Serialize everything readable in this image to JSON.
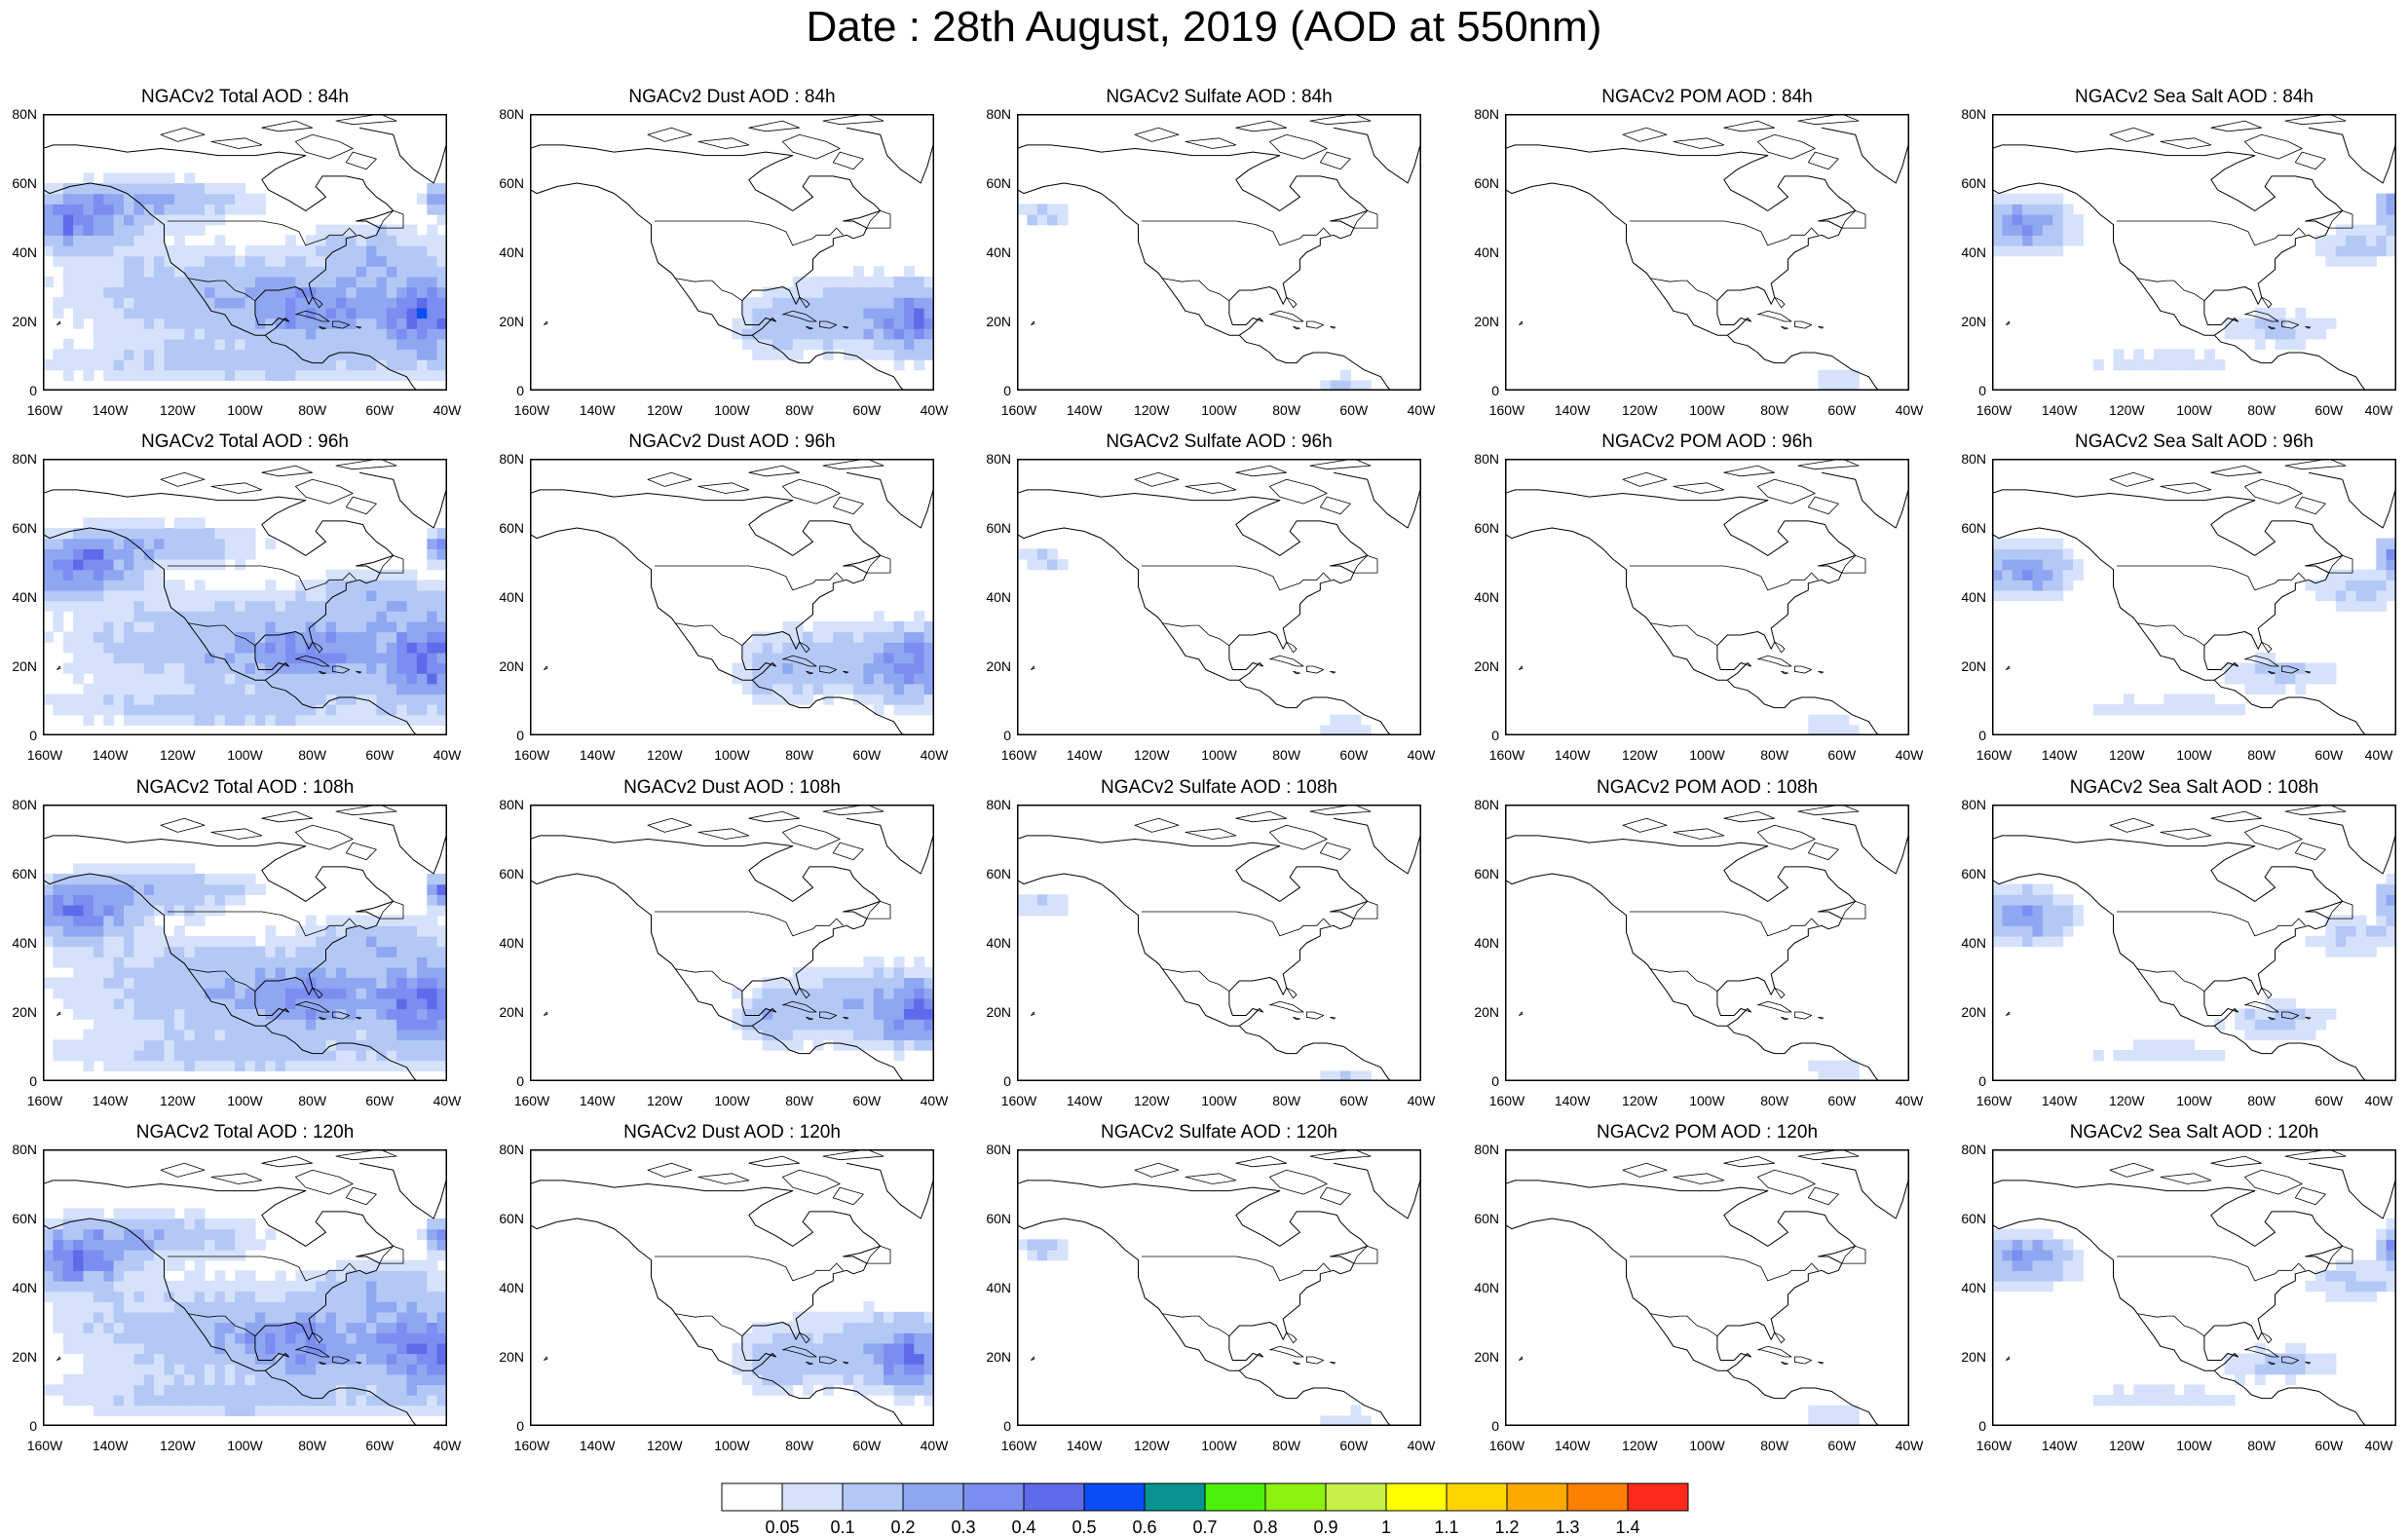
{
  "title": "Date : 28th August, 2019 (AOD at 550nm)",
  "lon_labels": [
    "160W",
    "140W",
    "120W",
    "100W",
    "80W",
    "60W",
    "40W"
  ],
  "lat_labels": [
    "80N",
    "60N",
    "40N",
    "20N",
    "0"
  ],
  "lon_values": [
    -160,
    -140,
    -120,
    -100,
    -80,
    -60,
    -40
  ],
  "lat_values": [
    80,
    60,
    40,
    20,
    0
  ],
  "map_extent": {
    "lon_min": -160,
    "lon_max": -40,
    "lat_min": 0,
    "lat_max": 80
  },
  "species": [
    {
      "key": "total",
      "label": "Total"
    },
    {
      "key": "dust",
      "label": "Dust"
    },
    {
      "key": "sulfate",
      "label": "Sulfate"
    },
    {
      "key": "pom",
      "label": "POM"
    },
    {
      "key": "seasalt",
      "label": "Sea Salt"
    }
  ],
  "panels": [
    [
      "NGACv2 Total AOD : 84h",
      "NGACv2 Dust AOD : 84h",
      "NGACv2 Sulfate AOD : 84h",
      "NGACv2 POM AOD : 84h",
      "NGACv2 Sea Salt AOD : 84h"
    ],
    [
      "NGACv2 Total AOD : 96h",
      "NGACv2 Dust AOD : 96h",
      "NGACv2 Sulfate AOD : 96h",
      "NGACv2 POM AOD : 96h",
      "NGACv2 Sea Salt AOD : 96h"
    ],
    [
      "NGACv2 Total AOD : 108h",
      "NGACv2 Dust AOD : 108h",
      "NGACv2 Sulfate AOD : 108h",
      "NGACv2 POM AOD : 108h",
      "NGACv2 Sea Salt AOD : 108h"
    ],
    [
      "NGACv2 Total AOD : 120h",
      "NGACv2 Dust AOD : 120h",
      "NGACv2 Sulfate AOD : 120h",
      "NGACv2 POM AOD : 120h",
      "NGACv2 Sea Salt  AOD : 120h"
    ]
  ],
  "colorbar": {
    "colors": [
      "#ffffff",
      "#d6e2fb",
      "#b4c8f6",
      "#8fa6f1",
      "#7b8df0",
      "#5f6aea",
      "#0b4df4",
      "#07938f",
      "#4cf00c",
      "#8ef00e",
      "#c8f048",
      "#ffff00",
      "#ffd500",
      "#ffaa00",
      "#ff7f00",
      "#ff2a1a"
    ],
    "labels": [
      "0.05",
      "0.1",
      "0.2",
      "0.3",
      "0.4",
      "0.5",
      "0.6",
      "0.7",
      "0.8",
      "0.9",
      "1",
      "1.1",
      "1.2",
      "1.3",
      "1.4"
    ]
  },
  "chart_data": {
    "type": "heatmap",
    "variable": "AOD at 550nm",
    "extent": {
      "lon": [
        -160,
        -40
      ],
      "lat": [
        0,
        80
      ]
    },
    "colorbar_levels": [
      0.05,
      0.1,
      0.2,
      0.3,
      0.4,
      0.5,
      0.6,
      0.7,
      0.8,
      0.9,
      1,
      1.1,
      1.2,
      1.3,
      1.4
    ],
    "forecast_hours": [
      "84h",
      "96h",
      "108h",
      "120h"
    ],
    "plumes": {
      "total": [
        {
          "lon": -150,
          "lat": 48,
          "rx": 14,
          "ry": 7,
          "v": 0.35
        },
        {
          "lon": -45,
          "lat": 22,
          "rx": 14,
          "ry": 11,
          "v": 0.4
        },
        {
          "lon": -80,
          "lat": 24,
          "rx": 22,
          "ry": 9,
          "v": 0.25
        },
        {
          "lon": -115,
          "lat": 28,
          "rx": 40,
          "ry": 14,
          "v": 0.15
        },
        {
          "lon": -100,
          "lat": 8,
          "rx": 60,
          "ry": 6,
          "v": 0.12
        },
        {
          "lon": -60,
          "lat": 40,
          "rx": 20,
          "ry": 8,
          "v": 0.15
        },
        {
          "lon": -130,
          "lat": 55,
          "rx": 30,
          "ry": 6,
          "v": 0.2
        },
        {
          "lon": -42,
          "lat": 55,
          "rx": 4,
          "ry": 4,
          "v": 0.35
        }
      ],
      "dust": [
        {
          "lon": -45,
          "lat": 20,
          "rx": 12,
          "ry": 9,
          "v": 0.3
        },
        {
          "lon": -65,
          "lat": 22,
          "rx": 26,
          "ry": 11,
          "v": 0.15
        },
        {
          "lon": -88,
          "lat": 18,
          "rx": 10,
          "ry": 8,
          "v": 0.12
        }
      ],
      "sulfate": [
        {
          "lon": -152,
          "lat": 51,
          "rx": 8,
          "ry": 4,
          "v": 0.12
        },
        {
          "lon": -62,
          "lat": 2,
          "rx": 10,
          "ry": 3,
          "v": 0.1
        }
      ],
      "pom": [
        {
          "lon": -62,
          "lat": 3,
          "rx": 10,
          "ry": 3,
          "v": 0.1
        }
      ],
      "seasalt": [
        {
          "lon": -150,
          "lat": 48,
          "rx": 13,
          "ry": 7,
          "v": 0.28
        },
        {
          "lon": -52,
          "lat": 42,
          "rx": 14,
          "ry": 6,
          "v": 0.12
        },
        {
          "lon": -75,
          "lat": 18,
          "rx": 18,
          "ry": 5,
          "v": 0.12
        },
        {
          "lon": -110,
          "lat": 8,
          "rx": 30,
          "ry": 4,
          "v": 0.08
        },
        {
          "lon": -42,
          "lat": 52,
          "rx": 3,
          "ry": 5,
          "v": 0.3
        }
      ]
    }
  }
}
